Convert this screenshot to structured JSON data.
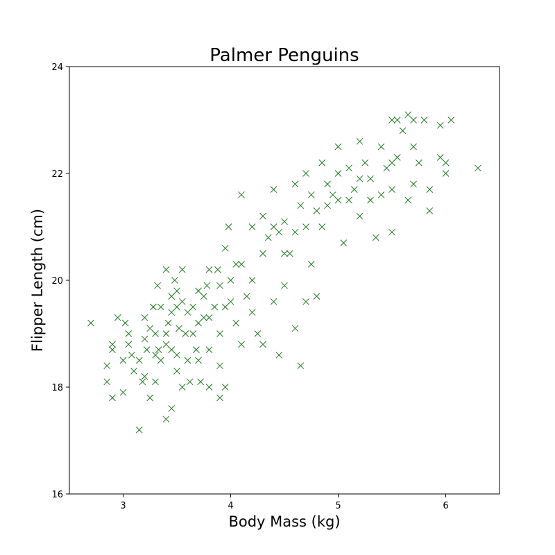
{
  "chart_data": {
    "type": "scatter",
    "title": "Palmer Penguins",
    "xlabel": "Body Mass (kg)",
    "ylabel": "Flipper Length (cm)",
    "xlim": [
      2.5,
      6.5
    ],
    "ylim": [
      16,
      24
    ],
    "xticks": [
      3,
      4,
      5,
      6
    ],
    "yticks": [
      16,
      18,
      20,
      22,
      24
    ],
    "grid": false,
    "marker": "x",
    "color": "#1a7a1a",
    "series": [
      {
        "points": [
          [
            2.7,
            19.2
          ],
          [
            2.85,
            18.4
          ],
          [
            2.85,
            18.1
          ],
          [
            2.9,
            18.8
          ],
          [
            2.9,
            18.7
          ],
          [
            2.9,
            17.8
          ],
          [
            2.95,
            19.3
          ],
          [
            3.0,
            17.9
          ],
          [
            3.0,
            18.5
          ],
          [
            3.02,
            19.2
          ],
          [
            3.05,
            19.0
          ],
          [
            3.05,
            18.8
          ],
          [
            3.08,
            18.6
          ],
          [
            3.1,
            18.3
          ],
          [
            3.15,
            18.5
          ],
          [
            3.15,
            17.2
          ],
          [
            3.18,
            18.1
          ],
          [
            3.2,
            18.9
          ],
          [
            3.2,
            19.3
          ],
          [
            3.2,
            18.2
          ],
          [
            3.22,
            18.7
          ],
          [
            3.25,
            19.1
          ],
          [
            3.25,
            17.8
          ],
          [
            3.28,
            19.5
          ],
          [
            3.3,
            18.6
          ],
          [
            3.3,
            19.0
          ],
          [
            3.3,
            18.1
          ],
          [
            3.32,
            19.9
          ],
          [
            3.33,
            18.7
          ],
          [
            3.35,
            19.5
          ],
          [
            3.35,
            18.5
          ],
          [
            3.4,
            20.2
          ],
          [
            3.4,
            19.0
          ],
          [
            3.4,
            18.8
          ],
          [
            3.4,
            17.4
          ],
          [
            3.42,
            19.2
          ],
          [
            3.45,
            19.7
          ],
          [
            3.45,
            19.4
          ],
          [
            3.45,
            18.7
          ],
          [
            3.45,
            17.6
          ],
          [
            3.48,
            20.0
          ],
          [
            3.5,
            19.8
          ],
          [
            3.5,
            19.5
          ],
          [
            3.5,
            18.6
          ],
          [
            3.5,
            18.3
          ],
          [
            3.52,
            19.1
          ],
          [
            3.55,
            20.2
          ],
          [
            3.55,
            19.6
          ],
          [
            3.55,
            18.0
          ],
          [
            3.58,
            19.0
          ],
          [
            3.6,
            19.4
          ],
          [
            3.6,
            18.5
          ],
          [
            3.62,
            18.1
          ],
          [
            3.65,
            19.5
          ],
          [
            3.65,
            19.0
          ],
          [
            3.68,
            18.7
          ],
          [
            3.7,
            19.8
          ],
          [
            3.7,
            19.2
          ],
          [
            3.7,
            18.5
          ],
          [
            3.72,
            18.1
          ],
          [
            3.75,
            19.7
          ],
          [
            3.75,
            19.3
          ],
          [
            3.78,
            19.9
          ],
          [
            3.8,
            20.2
          ],
          [
            3.8,
            19.3
          ],
          [
            3.8,
            18.7
          ],
          [
            3.8,
            18.0
          ],
          [
            3.85,
            19.5
          ],
          [
            3.88,
            20.2
          ],
          [
            3.9,
            19.9
          ],
          [
            3.9,
            19.0
          ],
          [
            3.9,
            18.4
          ],
          [
            3.9,
            17.8
          ],
          [
            3.95,
            20.6
          ],
          [
            3.95,
            19.5
          ],
          [
            3.95,
            18.0
          ],
          [
            3.98,
            21.0
          ],
          [
            4.0,
            20.0
          ],
          [
            4.0,
            19.6
          ],
          [
            4.05,
            20.3
          ],
          [
            4.05,
            19.2
          ],
          [
            4.1,
            21.6
          ],
          [
            4.1,
            20.3
          ],
          [
            4.1,
            18.8
          ],
          [
            4.15,
            19.7
          ],
          [
            4.2,
            21.0
          ],
          [
            4.2,
            20.0
          ],
          [
            4.2,
            19.4
          ],
          [
            4.25,
            19.0
          ],
          [
            4.3,
            21.2
          ],
          [
            4.3,
            20.5
          ],
          [
            4.3,
            18.8
          ],
          [
            4.35,
            20.8
          ],
          [
            4.4,
            21.7
          ],
          [
            4.4,
            21.0
          ],
          [
            4.4,
            19.6
          ],
          [
            4.45,
            20.9
          ],
          [
            4.45,
            18.6
          ],
          [
            4.5,
            21.1
          ],
          [
            4.5,
            20.5
          ],
          [
            4.5,
            19.9
          ],
          [
            4.55,
            20.5
          ],
          [
            4.6,
            21.8
          ],
          [
            4.6,
            20.9
          ],
          [
            4.6,
            19.1
          ],
          [
            4.65,
            21.4
          ],
          [
            4.65,
            18.4
          ],
          [
            4.7,
            22.0
          ],
          [
            4.7,
            21.0
          ],
          [
            4.7,
            19.6
          ],
          [
            4.75,
            21.6
          ],
          [
            4.75,
            20.3
          ],
          [
            4.8,
            21.3
          ],
          [
            4.8,
            19.7
          ],
          [
            4.85,
            22.2
          ],
          [
            4.85,
            21.0
          ],
          [
            4.9,
            21.8
          ],
          [
            4.9,
            21.4
          ],
          [
            4.95,
            21.6
          ],
          [
            5.0,
            22.5
          ],
          [
            5.0,
            22.0
          ],
          [
            5.0,
            21.5
          ],
          [
            5.05,
            20.7
          ],
          [
            5.1,
            22.1
          ],
          [
            5.1,
            21.5
          ],
          [
            5.15,
            21.7
          ],
          [
            5.2,
            22.6
          ],
          [
            5.2,
            21.9
          ],
          [
            5.2,
            21.2
          ],
          [
            5.25,
            22.2
          ],
          [
            5.3,
            21.9
          ],
          [
            5.3,
            21.5
          ],
          [
            5.35,
            20.8
          ],
          [
            5.4,
            22.5
          ],
          [
            5.4,
            21.6
          ],
          [
            5.45,
            22.1
          ],
          [
            5.5,
            23.0
          ],
          [
            5.5,
            22.2
          ],
          [
            5.5,
            21.7
          ],
          [
            5.5,
            20.9
          ],
          [
            5.55,
            23.0
          ],
          [
            5.55,
            22.3
          ],
          [
            5.6,
            22.8
          ],
          [
            5.65,
            23.1
          ],
          [
            5.65,
            21.5
          ],
          [
            5.7,
            23.0
          ],
          [
            5.7,
            22.5
          ],
          [
            5.7,
            21.8
          ],
          [
            5.75,
            22.2
          ],
          [
            5.8,
            23.0
          ],
          [
            5.85,
            21.7
          ],
          [
            5.85,
            21.3
          ],
          [
            5.95,
            22.9
          ],
          [
            5.95,
            22.3
          ],
          [
            6.0,
            22.2
          ],
          [
            6.0,
            22.0
          ],
          [
            6.05,
            23.0
          ],
          [
            6.3,
            22.1
          ]
        ]
      }
    ]
  }
}
